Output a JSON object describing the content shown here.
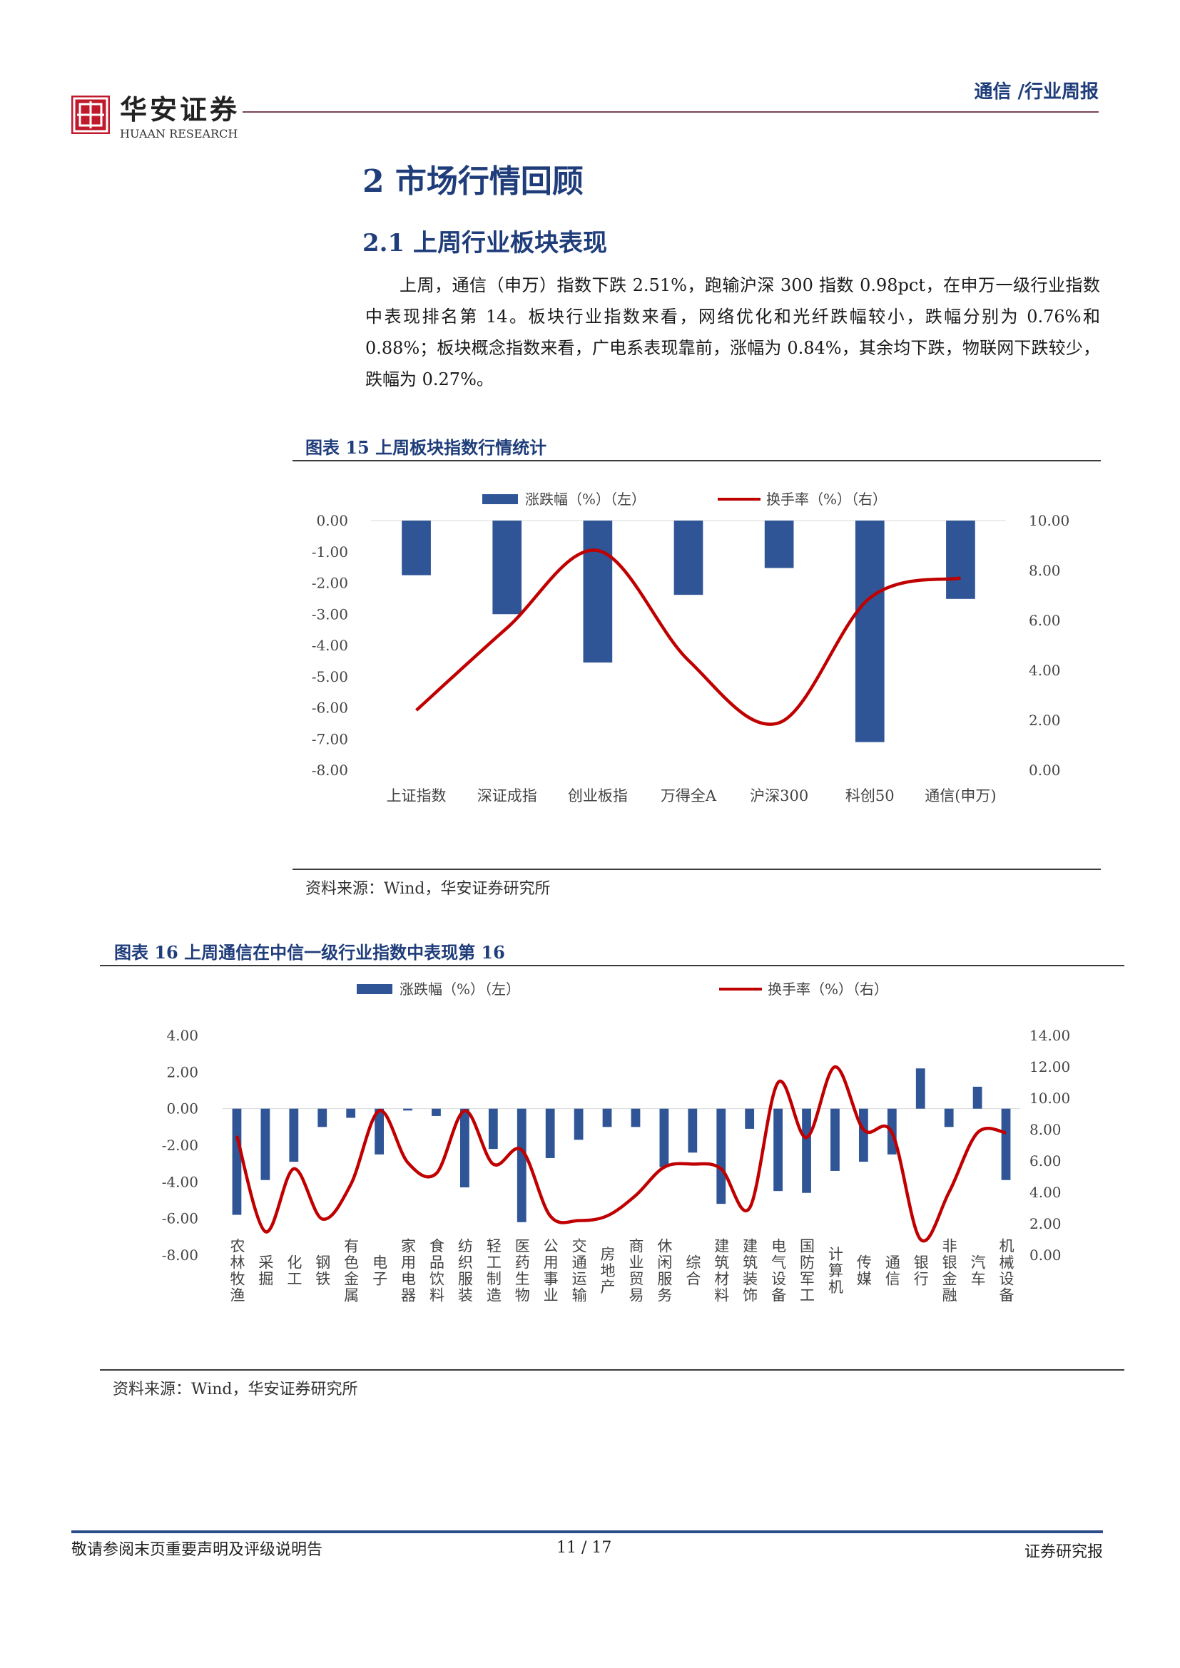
{
  "header": {
    "logo_cn": "华安证券",
    "logo_en": "HUAAN RESEARCH",
    "category": "通信 /行业周报"
  },
  "section": {
    "title": "2 市场行情回顾",
    "subsection_title": "2.1 上周行业板块表现",
    "paragraph": "上周，通信（申万）指数下跌 2.51%，跑输沪深 300 指数 0.98pct，在申万一级行业指数中表现排名第 14。板块行业指数来看，网络优化和光纤跌幅较小，跌幅分别为 0.76%和 0.88%；板块概念指数来看，广电系表现靠前，涨幅为 0.84%，其余均下跌，物联网下跌较少，跌幅为 0.27%。"
  },
  "figures": [
    {
      "title": "图表 15 上周板块指数行情统计",
      "source": "资料来源：Wind，华安证券研究所"
    },
    {
      "title": "图表 16 上周通信在中信一级行业指数中表现第 16",
      "source": "资料来源：Wind，华安证券研究所"
    }
  ],
  "chart_data": [
    {
      "type": "bar",
      "legend": [
        "涨跌幅（%）（左）",
        "换手率（%）（右）"
      ],
      "categories": [
        "上证指数",
        "深证成指",
        "创业板指",
        "万得全A",
        "沪深300",
        "科创50",
        "通信(申万)"
      ],
      "series": [
        {
          "name": "涨跌幅（%）（左）",
          "type": "bar",
          "axis": "left",
          "values": [
            -1.75,
            -3.0,
            -4.55,
            -2.38,
            -1.52,
            -7.1,
            -2.51
          ]
        },
        {
          "name": "换手率（%）（右）",
          "type": "line",
          "axis": "right",
          "values": [
            2.4,
            5.7,
            8.8,
            4.4,
            1.9,
            6.9,
            7.7
          ]
        }
      ],
      "y_left": {
        "range": [
          -8,
          0
        ],
        "ticks": [
          "0.00",
          "-1.00",
          "-2.00",
          "-3.00",
          "-4.00",
          "-5.00",
          "-6.00",
          "-7.00",
          "-8.00"
        ]
      },
      "y_right": {
        "range": [
          0,
          10
        ],
        "ticks": [
          "10.00",
          "8.00",
          "6.00",
          "4.00",
          "2.00",
          "0.00"
        ]
      },
      "colors": {
        "bar": "#2f5597",
        "line": "#c00000"
      },
      "legend_position": "top"
    },
    {
      "type": "bar",
      "legend": [
        "涨跌幅（%）（左）",
        "换手率（%）（右）"
      ],
      "categories": [
        "农林牧渔",
        "采掘",
        "化工",
        "钢铁",
        "有色金属",
        "电子",
        "家用电器",
        "食品饮料",
        "纺织服装",
        "轻工制造",
        "医药生物",
        "公用事业",
        "交通运输",
        "房地产",
        "商业贸易",
        "休闲服务",
        "综合",
        "建筑材料",
        "建筑装饰",
        "电气设备",
        "国防军工",
        "计算机",
        "传媒",
        "通信",
        "银行",
        "非银金融",
        "汽车",
        "机械设备"
      ],
      "series": [
        {
          "name": "涨跌幅（%）（左）",
          "type": "bar",
          "axis": "left",
          "values": [
            -5.8,
            -3.9,
            -2.9,
            -1.0,
            -0.5,
            -2.5,
            -0.1,
            -0.4,
            -4.3,
            -2.2,
            -6.2,
            -2.7,
            -1.7,
            -1.0,
            -1.0,
            -3.2,
            -2.4,
            -5.2,
            -1.1,
            -4.5,
            -4.6,
            -3.4,
            -2.9,
            -2.5,
            2.2,
            -1.0,
            1.2,
            -3.9
          ]
        },
        {
          "name": "换手率（%）（右）",
          "type": "line",
          "axis": "right",
          "values": [
            7.6,
            1.5,
            5.5,
            2.3,
            4.5,
            9.2,
            5.9,
            5.2,
            9.2,
            5.8,
            6.7,
            2.5,
            2.2,
            2.5,
            3.8,
            5.6,
            5.8,
            5.5,
            3.0,
            11.0,
            7.5,
            12.0,
            8.0,
            7.8,
            1.0,
            4.0,
            7.8,
            7.8
          ]
        }
      ],
      "y_left": {
        "range": [
          -8,
          4
        ],
        "ticks": [
          "4.00",
          "2.00",
          "0.00",
          "-2.00",
          "-4.00",
          "-6.00",
          "-8.00"
        ]
      },
      "y_right": {
        "range": [
          0,
          14
        ],
        "ticks": [
          "14.00",
          "12.00",
          "10.00",
          "8.00",
          "6.00",
          "4.00",
          "2.00",
          "0.00"
        ]
      },
      "colors": {
        "bar": "#2f5597",
        "line": "#c00000"
      },
      "legend_position": "top"
    }
  ],
  "footer": {
    "disclaimer": "敬请参阅末页重要声明及评级说明告",
    "page": "11 / 17",
    "report_type": "证券研究报"
  }
}
